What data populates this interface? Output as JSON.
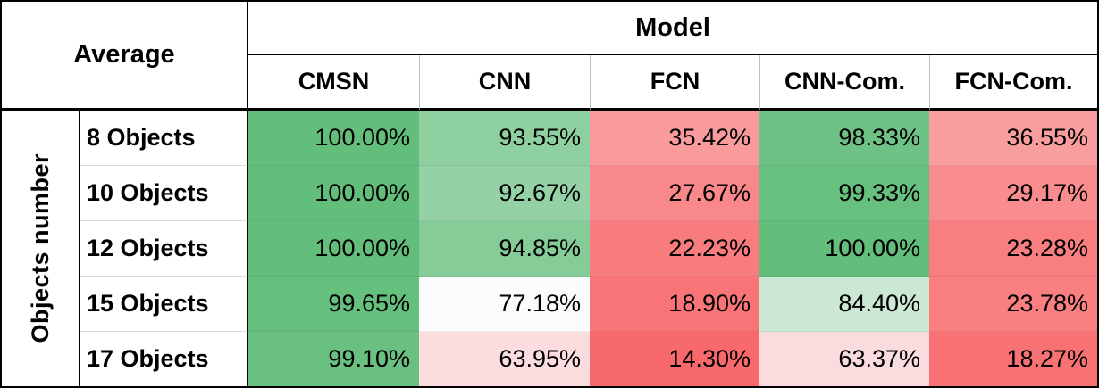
{
  "table": {
    "corner_label": "Average",
    "model_header": "Model",
    "row_group_label": "Objects number",
    "columns": [
      "CMSN",
      "CNN",
      "FCN",
      "CNN-Com.",
      "FCN-Com."
    ],
    "rows": [
      {
        "label": "8 Objects",
        "cells": [
          {
            "value": "100.00%",
            "bg": "#63BE7B"
          },
          {
            "value": "93.55%",
            "bg": "#8ED0A0"
          },
          {
            "value": "35.42%",
            "bg": "#F99A9D"
          },
          {
            "value": "98.33%",
            "bg": "#6EC285"
          },
          {
            "value": "36.55%",
            "bg": "#F99D9F"
          }
        ]
      },
      {
        "label": "10 Objects",
        "cells": [
          {
            "value": "100.00%",
            "bg": "#63BE7B"
          },
          {
            "value": "92.67%",
            "bg": "#94D2A5"
          },
          {
            "value": "27.67%",
            "bg": "#F9888B"
          },
          {
            "value": "99.33%",
            "bg": "#68C07F"
          },
          {
            "value": "29.17%",
            "bg": "#F98C8E"
          }
        ]
      },
      {
        "label": "12 Objects",
        "cells": [
          {
            "value": "100.00%",
            "bg": "#63BE7B"
          },
          {
            "value": "94.85%",
            "bg": "#86CC99"
          },
          {
            "value": "22.23%",
            "bg": "#F87C7E"
          },
          {
            "value": "100.00%",
            "bg": "#63BE7B"
          },
          {
            "value": "23.28%",
            "bg": "#F97E80"
          }
        ]
      },
      {
        "label": "15 Objects",
        "cells": [
          {
            "value": "99.65%",
            "bg": "#65BF7D"
          },
          {
            "value": "77.18%",
            "bg": "#FCFCFF"
          },
          {
            "value": "18.90%",
            "bg": "#F87476"
          },
          {
            "value": "84.40%",
            "bg": "#CBE8D5"
          },
          {
            "value": "23.78%",
            "bg": "#F97F81"
          }
        ]
      },
      {
        "label": "17 Objects",
        "cells": [
          {
            "value": "99.10%",
            "bg": "#69C080"
          },
          {
            "value": "63.95%",
            "bg": "#FBDDE0"
          },
          {
            "value": "14.30%",
            "bg": "#F8696B"
          },
          {
            "value": "63.37%",
            "bg": "#FBDCDE"
          },
          {
            "value": "18.27%",
            "bg": "#F87274"
          }
        ]
      }
    ]
  },
  "colors": {
    "scale_max_green": "#63BE7B",
    "scale_mid_white": "#FCFCFF",
    "scale_min_red": "#F8696B",
    "grid_black": "#000000",
    "grid_gray": "#BFBFBF",
    "rowlabel_sep_gray": "#D9D9D9"
  },
  "chart_data": {
    "type": "heatmap",
    "title": "Average",
    "x_axis_label": "Model",
    "y_axis_label": "Objects number",
    "x_categories": [
      "CMSN",
      "CNN",
      "FCN",
      "CNN-Com.",
      "FCN-Com."
    ],
    "y_categories": [
      "8 Objects",
      "10 Objects",
      "12 Objects",
      "15 Objects",
      "17 Objects"
    ],
    "values_percent": [
      [
        100.0,
        93.55,
        35.42,
        98.33,
        36.55
      ],
      [
        100.0,
        92.67,
        27.67,
        99.33,
        29.17
      ],
      [
        100.0,
        94.85,
        22.23,
        100.0,
        23.28
      ],
      [
        99.65,
        77.18,
        18.9,
        84.4,
        23.78
      ],
      [
        99.1,
        63.95,
        14.3,
        63.37,
        18.27
      ]
    ],
    "color_scale": {
      "min_color": "#F8696B",
      "mid_color": "#FCFCFF",
      "max_color": "#63BE7B",
      "min": 14.3,
      "mid": 77.18,
      "max": 100.0
    },
    "legend": "none",
    "grid": "cell-borders"
  }
}
